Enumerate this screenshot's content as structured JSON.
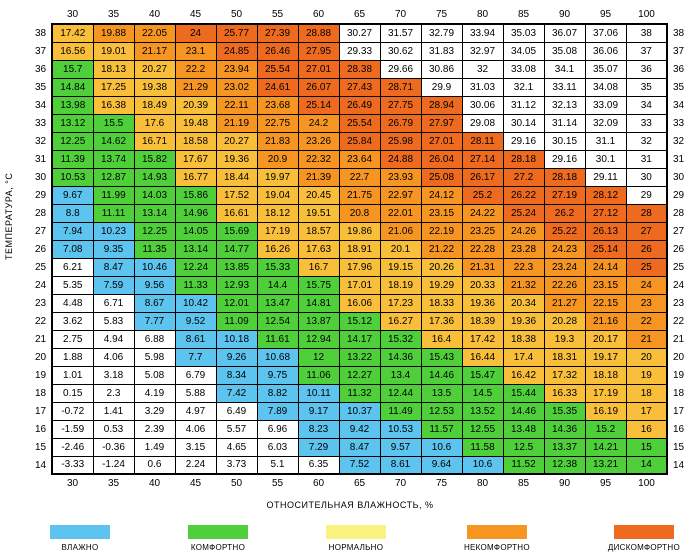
{
  "ylabel": "ТЕМПЕРАТУРА, °C",
  "xlabel": "ОТНОСИТЕЛЬНАЯ ВЛАЖНОСТЬ, %",
  "humidity": [
    30,
    35,
    40,
    45,
    50,
    55,
    60,
    65,
    70,
    75,
    80,
    85,
    90,
    95,
    100
  ],
  "temperature": [
    38,
    37,
    36,
    35,
    34,
    33,
    32,
    31,
    30,
    29,
    28,
    27,
    26,
    25,
    24,
    23,
    22,
    21,
    20,
    19,
    18,
    17,
    16,
    15,
    14
  ],
  "colors": {
    "blue": "#5cc4ef",
    "green": "#4fd03b",
    "yellow": "#fbf380",
    "orange1": "#f9bf3a",
    "orange2": "#f79522",
    "red": "#ed6a1f",
    "white": "#ffffff"
  },
  "legend": [
    {
      "label": "ВЛАЖНО",
      "color": "blue"
    },
    {
      "label": "КОМФОРТНО",
      "color": "green"
    },
    {
      "label": "НОРМАЛЬНО",
      "color": "yellow"
    },
    {
      "label": "НЕКОМФОРТНО",
      "color": "orange2"
    },
    {
      "label": "ДИСКОМФОРТНО",
      "color": "red"
    }
  ],
  "grid": [
    [
      [
        "17.42",
        "orange1"
      ],
      [
        "19.88",
        "orange2"
      ],
      [
        "22.05",
        "orange2"
      ],
      [
        "24",
        "red"
      ],
      [
        "25.77",
        "red"
      ],
      [
        "27.39",
        "red"
      ],
      [
        "28.88",
        "red"
      ],
      [
        "30.27",
        "white"
      ],
      [
        "31.57",
        "white"
      ],
      [
        "32.79",
        "white"
      ],
      [
        "33.94",
        "white"
      ],
      [
        "35.03",
        "white"
      ],
      [
        "36.07",
        "white"
      ],
      [
        "37.06",
        "white"
      ],
      [
        "38",
        "white"
      ]
    ],
    [
      [
        "16.56",
        "orange1"
      ],
      [
        "19.01",
        "orange1"
      ],
      [
        "21.17",
        "orange2"
      ],
      [
        "23.1",
        "orange2"
      ],
      [
        "24.85",
        "red"
      ],
      [
        "26.46",
        "red"
      ],
      [
        "27.95",
        "red"
      ],
      [
        "29.33",
        "white"
      ],
      [
        "30.62",
        "white"
      ],
      [
        "31.83",
        "white"
      ],
      [
        "32.97",
        "white"
      ],
      [
        "34.05",
        "white"
      ],
      [
        "35.08",
        "white"
      ],
      [
        "36.06",
        "white"
      ],
      [
        "37",
        "white"
      ]
    ],
    [
      [
        "15.7",
        "green"
      ],
      [
        "18.13",
        "orange1"
      ],
      [
        "20.27",
        "orange1"
      ],
      [
        "22.2",
        "orange2"
      ],
      [
        "23.94",
        "orange2"
      ],
      [
        "25.54",
        "red"
      ],
      [
        "27.01",
        "red"
      ],
      [
        "28.38",
        "red"
      ],
      [
        "29.66",
        "white"
      ],
      [
        "30.86",
        "white"
      ],
      [
        "32",
        "white"
      ],
      [
        "33.08",
        "white"
      ],
      [
        "34.1",
        "white"
      ],
      [
        "35.07",
        "white"
      ],
      [
        "36",
        "white"
      ]
    ],
    [
      [
        "14.84",
        "green"
      ],
      [
        "17.25",
        "orange1"
      ],
      [
        "19.38",
        "orange1"
      ],
      [
        "21.29",
        "orange2"
      ],
      [
        "23.02",
        "orange2"
      ],
      [
        "24.61",
        "red"
      ],
      [
        "26.07",
        "red"
      ],
      [
        "27.43",
        "red"
      ],
      [
        "28.71",
        "red"
      ],
      [
        "29.9",
        "white"
      ],
      [
        "31.03",
        "white"
      ],
      [
        "32.1",
        "white"
      ],
      [
        "33.11",
        "white"
      ],
      [
        "34.08",
        "white"
      ],
      [
        "35",
        "white"
      ]
    ],
    [
      [
        "13.98",
        "green"
      ],
      [
        "16.38",
        "orange1"
      ],
      [
        "18.49",
        "orange1"
      ],
      [
        "20.39",
        "orange1"
      ],
      [
        "22.11",
        "orange2"
      ],
      [
        "23.68",
        "orange2"
      ],
      [
        "25.14",
        "red"
      ],
      [
        "26.49",
        "red"
      ],
      [
        "27.75",
        "red"
      ],
      [
        "28.94",
        "red"
      ],
      [
        "30.06",
        "white"
      ],
      [
        "31.12",
        "white"
      ],
      [
        "32.13",
        "white"
      ],
      [
        "33.09",
        "white"
      ],
      [
        "34",
        "white"
      ]
    ],
    [
      [
        "13.12",
        "green"
      ],
      [
        "15.5",
        "green"
      ],
      [
        "17.6",
        "orange1"
      ],
      [
        "19.48",
        "orange1"
      ],
      [
        "21.19",
        "orange2"
      ],
      [
        "22.75",
        "orange2"
      ],
      [
        "24.2",
        "orange2"
      ],
      [
        "25.54",
        "red"
      ],
      [
        "26.79",
        "red"
      ],
      [
        "27.97",
        "red"
      ],
      [
        "29.08",
        "white"
      ],
      [
        "30.14",
        "white"
      ],
      [
        "31.14",
        "white"
      ],
      [
        "32.09",
        "white"
      ],
      [
        "33",
        "white"
      ]
    ],
    [
      [
        "12.25",
        "green"
      ],
      [
        "14.62",
        "green"
      ],
      [
        "16.71",
        "orange1"
      ],
      [
        "18.58",
        "orange1"
      ],
      [
        "20.27",
        "orange1"
      ],
      [
        "21.83",
        "orange2"
      ],
      [
        "23.26",
        "orange2"
      ],
      [
        "25.84",
        "red"
      ],
      [
        "25.98",
        "red"
      ],
      [
        "27.01",
        "red"
      ],
      [
        "28.11",
        "red"
      ],
      [
        "29.16",
        "white"
      ],
      [
        "30.15",
        "white"
      ],
      [
        "31.1",
        "white"
      ],
      [
        "32",
        "white"
      ]
    ],
    [
      [
        "11.39",
        "green"
      ],
      [
        "13.74",
        "green"
      ],
      [
        "15.82",
        "green"
      ],
      [
        "17.67",
        "orange1"
      ],
      [
        "19.36",
        "orange1"
      ],
      [
        "20.9",
        "orange2"
      ],
      [
        "22.32",
        "orange2"
      ],
      [
        "23.64",
        "orange2"
      ],
      [
        "24.88",
        "red"
      ],
      [
        "26.04",
        "red"
      ],
      [
        "27.14",
        "red"
      ],
      [
        "28.18",
        "red"
      ],
      [
        "29.16",
        "white"
      ],
      [
        "30.1",
        "white"
      ],
      [
        "31",
        "white"
      ]
    ],
    [
      [
        "10.53",
        "green"
      ],
      [
        "12.87",
        "green"
      ],
      [
        "14.93",
        "green"
      ],
      [
        "16.77",
        "orange1"
      ],
      [
        "18.44",
        "orange1"
      ],
      [
        "19.97",
        "orange1"
      ],
      [
        "21.39",
        "orange2"
      ],
      [
        "22.7",
        "orange2"
      ],
      [
        "23.93",
        "orange2"
      ],
      [
        "25.08",
        "red"
      ],
      [
        "26.17",
        "red"
      ],
      [
        "27.2",
        "red"
      ],
      [
        "28.18",
        "red"
      ],
      [
        "29.11",
        "white"
      ],
      [
        "30",
        "white"
      ]
    ],
    [
      [
        "9.67",
        "blue"
      ],
      [
        "11.99",
        "green"
      ],
      [
        "14.03",
        "green"
      ],
      [
        "15.86",
        "green"
      ],
      [
        "17.52",
        "orange1"
      ],
      [
        "19.04",
        "orange1"
      ],
      [
        "20.45",
        "orange1"
      ],
      [
        "21.75",
        "orange2"
      ],
      [
        "22.97",
        "orange2"
      ],
      [
        "24.12",
        "orange2"
      ],
      [
        "25.2",
        "red"
      ],
      [
        "26.22",
        "red"
      ],
      [
        "27.19",
        "red"
      ],
      [
        "28.12",
        "red"
      ],
      [
        "29",
        "white"
      ]
    ],
    [
      [
        "8.8",
        "blue"
      ],
      [
        "11.11",
        "green"
      ],
      [
        "13.14",
        "green"
      ],
      [
        "14.96",
        "green"
      ],
      [
        "16.61",
        "orange1"
      ],
      [
        "18.12",
        "orange1"
      ],
      [
        "19.51",
        "orange1"
      ],
      [
        "20.8",
        "orange2"
      ],
      [
        "22.01",
        "orange2"
      ],
      [
        "23.15",
        "orange2"
      ],
      [
        "24.22",
        "orange2"
      ],
      [
        "25.24",
        "red"
      ],
      [
        "26.2",
        "red"
      ],
      [
        "27.12",
        "red"
      ],
      [
        "28",
        "red"
      ]
    ],
    [
      [
        "7.94",
        "blue"
      ],
      [
        "10.23",
        "blue"
      ],
      [
        "12.25",
        "green"
      ],
      [
        "14.05",
        "green"
      ],
      [
        "15.69",
        "green"
      ],
      [
        "17.19",
        "orange1"
      ],
      [
        "18.57",
        "orange1"
      ],
      [
        "19.86",
        "orange1"
      ],
      [
        "21.06",
        "orange2"
      ],
      [
        "22.19",
        "orange2"
      ],
      [
        "23.25",
        "orange2"
      ],
      [
        "24.26",
        "orange2"
      ],
      [
        "25.22",
        "red"
      ],
      [
        "26.13",
        "red"
      ],
      [
        "27",
        "red"
      ]
    ],
    [
      [
        "7.08",
        "blue"
      ],
      [
        "9.35",
        "blue"
      ],
      [
        "11.35",
        "green"
      ],
      [
        "13.14",
        "green"
      ],
      [
        "14.77",
        "green"
      ],
      [
        "16.26",
        "orange1"
      ],
      [
        "17.63",
        "orange1"
      ],
      [
        "18.91",
        "orange1"
      ],
      [
        "20.1",
        "orange1"
      ],
      [
        "21.22",
        "orange2"
      ],
      [
        "22.28",
        "orange2"
      ],
      [
        "23.28",
        "orange2"
      ],
      [
        "24.23",
        "orange2"
      ],
      [
        "25.14",
        "red"
      ],
      [
        "26",
        "red"
      ]
    ],
    [
      [
        "6.21",
        "white"
      ],
      [
        "8.47",
        "blue"
      ],
      [
        "10.46",
        "blue"
      ],
      [
        "12.24",
        "green"
      ],
      [
        "13.85",
        "green"
      ],
      [
        "15.33",
        "green"
      ],
      [
        "16.7",
        "orange1"
      ],
      [
        "17.96",
        "orange1"
      ],
      [
        "19.15",
        "orange1"
      ],
      [
        "20.26",
        "orange1"
      ],
      [
        "21.31",
        "orange2"
      ],
      [
        "22.3",
        "orange2"
      ],
      [
        "23.24",
        "orange2"
      ],
      [
        "24.14",
        "orange2"
      ],
      [
        "25",
        "red"
      ]
    ],
    [
      [
        "5.35",
        "white"
      ],
      [
        "7.59",
        "blue"
      ],
      [
        "9.56",
        "blue"
      ],
      [
        "11.33",
        "green"
      ],
      [
        "12.93",
        "green"
      ],
      [
        "14.4",
        "green"
      ],
      [
        "15.75",
        "green"
      ],
      [
        "17.01",
        "orange1"
      ],
      [
        "18.19",
        "orange1"
      ],
      [
        "19.29",
        "orange1"
      ],
      [
        "20.33",
        "orange1"
      ],
      [
        "21.32",
        "orange2"
      ],
      [
        "22.26",
        "orange2"
      ],
      [
        "23.15",
        "orange2"
      ],
      [
        "24",
        "orange2"
      ]
    ],
    [
      [
        "4.48",
        "white"
      ],
      [
        "6.71",
        "white"
      ],
      [
        "8.67",
        "blue"
      ],
      [
        "10.42",
        "blue"
      ],
      [
        "12.01",
        "green"
      ],
      [
        "13.47",
        "green"
      ],
      [
        "14.81",
        "green"
      ],
      [
        "16.06",
        "orange1"
      ],
      [
        "17.23",
        "orange1"
      ],
      [
        "18.33",
        "orange1"
      ],
      [
        "19.36",
        "orange1"
      ],
      [
        "20.34",
        "orange1"
      ],
      [
        "21.27",
        "orange2"
      ],
      [
        "22.15",
        "orange2"
      ],
      [
        "23",
        "orange2"
      ]
    ],
    [
      [
        "3.62",
        "white"
      ],
      [
        "5.83",
        "white"
      ],
      [
        "7.77",
        "blue"
      ],
      [
        "9.52",
        "blue"
      ],
      [
        "11.09",
        "green"
      ],
      [
        "12.54",
        "green"
      ],
      [
        "13.87",
        "green"
      ],
      [
        "15.12",
        "green"
      ],
      [
        "16.27",
        "orange1"
      ],
      [
        "17.36",
        "orange1"
      ],
      [
        "18.39",
        "orange1"
      ],
      [
        "19.36",
        "orange1"
      ],
      [
        "20.28",
        "orange1"
      ],
      [
        "21.16",
        "orange2"
      ],
      [
        "22",
        "orange2"
      ]
    ],
    [
      [
        "2.75",
        "white"
      ],
      [
        "4.94",
        "white"
      ],
      [
        "6.88",
        "white"
      ],
      [
        "8.61",
        "blue"
      ],
      [
        "10.18",
        "blue"
      ],
      [
        "11.61",
        "green"
      ],
      [
        "12.94",
        "green"
      ],
      [
        "14.17",
        "green"
      ],
      [
        "15.32",
        "green"
      ],
      [
        "16.4",
        "orange1"
      ],
      [
        "17.42",
        "orange1"
      ],
      [
        "18.38",
        "orange1"
      ],
      [
        "19.3",
        "orange1"
      ],
      [
        "20.17",
        "orange1"
      ],
      [
        "21",
        "orange2"
      ]
    ],
    [
      [
        "1.88",
        "white"
      ],
      [
        "4.06",
        "white"
      ],
      [
        "5.98",
        "white"
      ],
      [
        "7.7",
        "blue"
      ],
      [
        "9.26",
        "blue"
      ],
      [
        "10.68",
        "blue"
      ],
      [
        "12",
        "green"
      ],
      [
        "13.22",
        "green"
      ],
      [
        "14.36",
        "green"
      ],
      [
        "15.43",
        "green"
      ],
      [
        "16.44",
        "orange1"
      ],
      [
        "17.4",
        "orange1"
      ],
      [
        "18.31",
        "orange1"
      ],
      [
        "19.17",
        "orange1"
      ],
      [
        "20",
        "orange1"
      ]
    ],
    [
      [
        "1.01",
        "white"
      ],
      [
        "3.18",
        "white"
      ],
      [
        "5.08",
        "white"
      ],
      [
        "6.79",
        "white"
      ],
      [
        "8.34",
        "blue"
      ],
      [
        "9.75",
        "blue"
      ],
      [
        "11.06",
        "green"
      ],
      [
        "12.27",
        "green"
      ],
      [
        "13.4",
        "green"
      ],
      [
        "14.46",
        "green"
      ],
      [
        "15.47",
        "green"
      ],
      [
        "16.42",
        "orange1"
      ],
      [
        "17.32",
        "orange1"
      ],
      [
        "18.18",
        "orange1"
      ],
      [
        "19",
        "orange1"
      ]
    ],
    [
      [
        "0.15",
        "white"
      ],
      [
        "2.3",
        "white"
      ],
      [
        "4.19",
        "white"
      ],
      [
        "5.88",
        "white"
      ],
      [
        "7.42",
        "blue"
      ],
      [
        "8.82",
        "blue"
      ],
      [
        "10.11",
        "blue"
      ],
      [
        "11.32",
        "green"
      ],
      [
        "12.44",
        "green"
      ],
      [
        "13.5",
        "green"
      ],
      [
        "14.5",
        "green"
      ],
      [
        "15.44",
        "green"
      ],
      [
        "16.33",
        "orange1"
      ],
      [
        "17.19",
        "orange1"
      ],
      [
        "18",
        "orange1"
      ]
    ],
    [
      [
        "-0.72",
        "white"
      ],
      [
        "1.41",
        "white"
      ],
      [
        "3.29",
        "white"
      ],
      [
        "4.97",
        "white"
      ],
      [
        "6.49",
        "white"
      ],
      [
        "7.89",
        "blue"
      ],
      [
        "9.17",
        "blue"
      ],
      [
        "10.37",
        "blue"
      ],
      [
        "11.49",
        "green"
      ],
      [
        "12.53",
        "green"
      ],
      [
        "13.52",
        "green"
      ],
      [
        "14.46",
        "green"
      ],
      [
        "15.35",
        "green"
      ],
      [
        "16.19",
        "orange1"
      ],
      [
        "17",
        "orange1"
      ]
    ],
    [
      [
        "-1.59",
        "white"
      ],
      [
        "0.53",
        "white"
      ],
      [
        "2.39",
        "white"
      ],
      [
        "4.06",
        "white"
      ],
      [
        "5.57",
        "white"
      ],
      [
        "6.96",
        "white"
      ],
      [
        "8.23",
        "blue"
      ],
      [
        "9.42",
        "blue"
      ],
      [
        "10.53",
        "blue"
      ],
      [
        "11.57",
        "green"
      ],
      [
        "12.55",
        "green"
      ],
      [
        "13.48",
        "green"
      ],
      [
        "14.36",
        "green"
      ],
      [
        "15.2",
        "green"
      ],
      [
        "16",
        "orange1"
      ]
    ],
    [
      [
        "-2.46",
        "white"
      ],
      [
        "-0.36",
        "white"
      ],
      [
        "1.49",
        "white"
      ],
      [
        "3.15",
        "white"
      ],
      [
        "4.65",
        "white"
      ],
      [
        "6.03",
        "white"
      ],
      [
        "7.29",
        "blue"
      ],
      [
        "8.47",
        "blue"
      ],
      [
        "9.57",
        "blue"
      ],
      [
        "10.6",
        "blue"
      ],
      [
        "11.58",
        "green"
      ],
      [
        "12.5",
        "green"
      ],
      [
        "13.37",
        "green"
      ],
      [
        "14.21",
        "green"
      ],
      [
        "15",
        "green"
      ]
    ],
    [
      [
        "-3.33",
        "white"
      ],
      [
        "-1.24",
        "white"
      ],
      [
        "0.6",
        "white"
      ],
      [
        "2.24",
        "white"
      ],
      [
        "3.73",
        "white"
      ],
      [
        "5.1",
        "white"
      ],
      [
        "6.35",
        "white"
      ],
      [
        "7.52",
        "blue"
      ],
      [
        "8.61",
        "blue"
      ],
      [
        "9.64",
        "blue"
      ],
      [
        "10.6",
        "blue"
      ],
      [
        "11.52",
        "green"
      ],
      [
        "12.38",
        "green"
      ],
      [
        "13.21",
        "green"
      ],
      [
        "14",
        "green"
      ]
    ]
  ]
}
